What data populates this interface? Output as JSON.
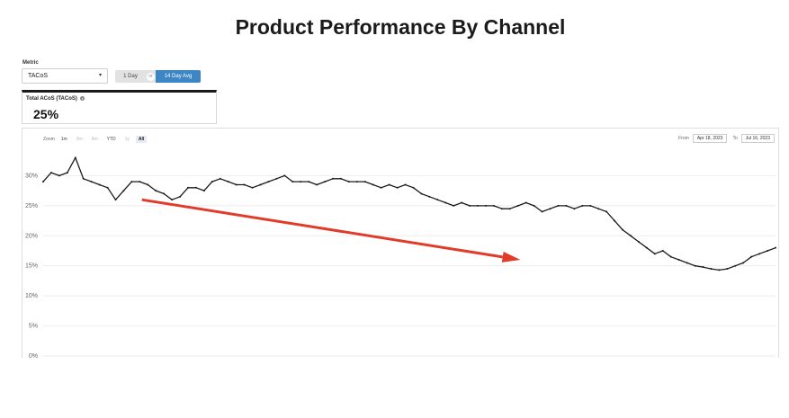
{
  "page": {
    "title": "Product Performance By Channel"
  },
  "metric": {
    "label": "Metric",
    "selected": "TACoS"
  },
  "toggle": {
    "option_1": "1 Day",
    "separator": "or",
    "option_2": "14 Day Avg",
    "active": "14 Day Avg"
  },
  "kpi": {
    "label": "Total ACoS (TACoS)",
    "info_glyph": "i",
    "value": "25%"
  },
  "zoom": {
    "label": "Zoom",
    "options": [
      "1m",
      "3m",
      "6m",
      "YTD",
      "1y",
      "All"
    ],
    "active": "All"
  },
  "date_range": {
    "from_label": "From",
    "from": "Apr 18, 2023",
    "to_label": "To",
    "to": "Jul 16, 2023"
  },
  "colors": {
    "line": "#1a1a1a",
    "arrow": "#e23b2a",
    "grid": "#e6e6e6",
    "toggle_active": "#3d86c6"
  },
  "chart_data": {
    "type": "line",
    "title": "",
    "xlabel": "",
    "ylabel": "",
    "ylim": [
      0,
      35
    ],
    "yticks": [
      0,
      5,
      10,
      15,
      20,
      25,
      30
    ],
    "ytick_labels": [
      "0%",
      "5%",
      "10%",
      "15%",
      "20%",
      "25%",
      "30%"
    ],
    "grid": true,
    "x_start": "Apr 18, 2023",
    "x_end": "Jul 16, 2023",
    "series": [
      {
        "values": [
          29,
          30.5,
          30,
          30.5,
          33,
          29.5,
          29,
          28.5,
          28,
          26,
          27.5,
          29,
          29,
          28.5,
          27.5,
          27,
          26,
          26.5,
          28,
          28,
          27.5,
          29,
          29.5,
          29,
          28.5,
          28.5,
          28,
          28.5,
          29,
          29.5,
          30,
          29,
          29,
          29,
          28.5,
          29,
          29.5,
          29.5,
          29,
          29,
          29,
          28.5,
          28,
          28.5,
          28,
          28.5,
          28,
          27,
          26.5,
          26,
          25.5,
          25,
          25.5,
          25,
          25,
          25,
          25,
          24.5,
          24.5,
          25,
          25.5,
          25,
          24,
          24.5,
          25,
          25,
          24.5,
          25,
          25,
          24.5,
          24,
          22.5,
          21,
          20,
          19,
          18,
          17,
          17.5,
          16.5,
          16,
          15.5,
          15,
          14.8,
          14.5,
          14.3,
          14.5,
          15,
          15.5,
          16.5,
          17,
          17.5,
          18
        ]
      }
    ],
    "annotations": [
      {
        "type": "arrow",
        "from": [
          "Apr 30, 2023",
          26
        ],
        "to": [
          "Jun 15, 2023",
          16
        ]
      }
    ]
  }
}
